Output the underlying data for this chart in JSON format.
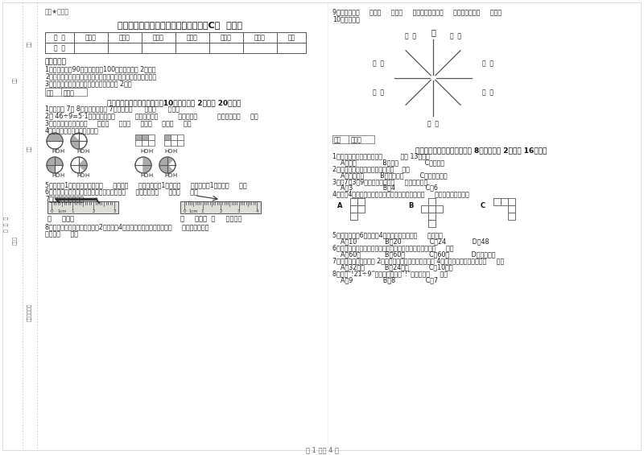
{
  "title": "江苏版三年级数学下学期期中考试试题C卷  附解析",
  "header_label": "题卷★自用题",
  "table_headers": [
    "题  号",
    "填空题",
    "选择题",
    "判断题",
    "计算题",
    "综合题",
    "应用题",
    "总分"
  ],
  "table_row": [
    "得  分",
    "",
    "",
    "",
    "",
    "",
    "",
    ""
  ],
  "exam_notice_title": "考试须知：",
  "exam_notices": [
    "1、考试时间：90分钟，满分为100分（含卷面分 2分）。",
    "2、请首先按要求在试卷的指定位置填写您的姓名、班级、学号。",
    "3、不要在试卷上乱写乱画，卷面不整洁口 2分。"
  ],
  "section1_header": "一、用心思考，正确填空（共10小题，每题 2分，共 20分）。",
  "section1_q1": "1、时针在 7和 8之间，分针指向 7，这时是（      ）时（      ）分。",
  "section1_q2": "2、 46÷9=5·1中，被除数是（          ），除数是（          ），商是（          ），余数是（     ）。",
  "section1_q3": "3、常用的长度单位有（     ）、（     ）、（     ）、（     ）、（     ）。",
  "section1_q4": "4、看图写分数，并比较大小。",
  "section1_q5": "5、分针走1小格，秒针正好走（     ），是（     ）秒；分针走1大格是（     ），时针走1大格是（     ）。",
  "section1_q6": "6、在进位加法中，不管哪一位上的数相加满（     ），都要向（     ）进（     ）。",
  "section1_q7": "7、量出钉子的長度。",
  "section1_q8": "8、劳动课上摘纸花，红红摘了2朵红花，4朵菊花，红花占纸花总数的（     ），菊花占纸花",
  "section1_q8b": "总数的（     ）。",
  "section1_q9": "9、你出生于（     ）年（     ）月（     ）日，那一年是（     ）年，全年有（     ）天。",
  "section1_q10": "10、填一填。",
  "compass_N": "北",
  "section2_header": "二、反复比较，慎重选择（共 8小题，每题 2分，共 16分）。",
  "section2_q1": "1、按农历计算，有的年份（         ）有 13个月。",
  "section2_q1_opts": "    A、一定             B、可能             C、不可能",
  "section2_q2": "2、下面现象中属于平移现象的是（    ）。",
  "section2_q2_opts": "    A、开关抽屉        B、打开瓶盖        C、转动的风车",
  "section2_q3": "3、用7、3、9三个数字可组成（     ）个三位数。",
  "section2_q3_opts": "    A、3               B、4               C、6",
  "section2_q4": "4、下光4个图形中，每个小正方形都一样大，那么（     ）图形的周长最长。",
  "section2_q5": "5、一个长方形6厘米，剆4厘米，它的周长是（     ）厘米。",
  "section2_q5_opts": "    A、10              B、20              C、24             D、48",
  "section2_q6": "6、时针从上一个数字到相邻的下一个数字，经过的时间是（     ）。",
  "section2_q6_opts": "    A、60秒            B、60分            C、60时           D、无法确定",
  "section2_q7": "7、一个正方形的边长是 2厘米，现在将边长扩大到原来的 4倍，现在正方形的周长是（     ）。",
  "section2_q7_opts": "    A、32厘米          B、24厘米          C、10厘米",
  "section2_q8": "8、要使“!21÷9”的商是三位数，“!”里只能填（     ）。",
  "section2_q8_opts": "    A、9               B、8               C、7",
  "footer": "第 1 页共 4 页",
  "bg_color": "#ffffff"
}
